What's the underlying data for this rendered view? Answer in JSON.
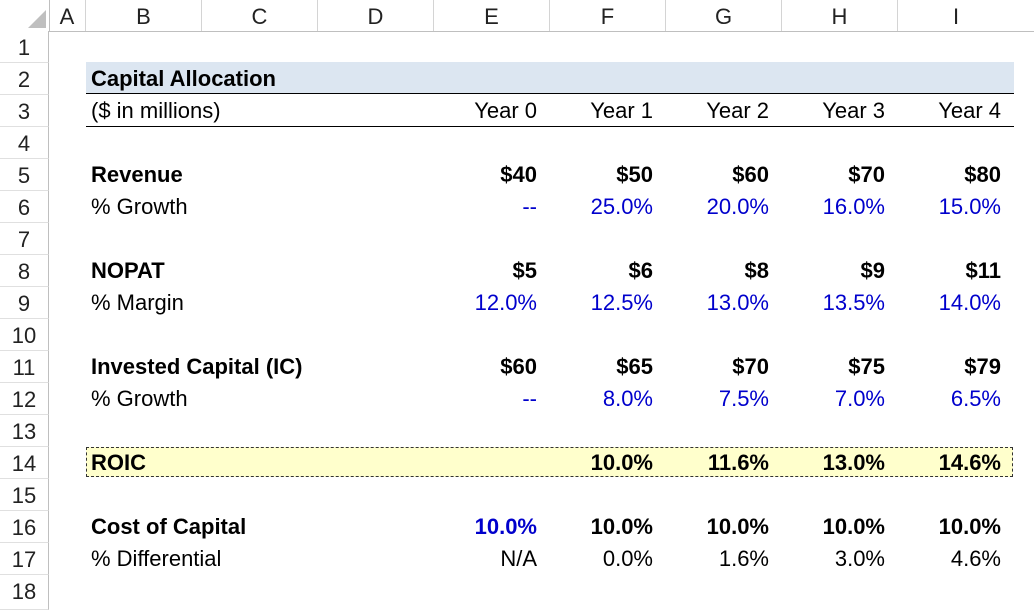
{
  "columns": [
    "A",
    "B",
    "C",
    "D",
    "E",
    "F",
    "G",
    "H",
    "I"
  ],
  "rows": [
    "1",
    "2",
    "3",
    "4",
    "5",
    "6",
    "7",
    "8",
    "9",
    "10",
    "11",
    "12",
    "13",
    "14",
    "15",
    "16",
    "17",
    "18"
  ],
  "title": "Capital Allocation",
  "units": "($ in millions)",
  "years": [
    "Year 0",
    "Year 1",
    "Year 2",
    "Year 3",
    "Year 4"
  ],
  "revenue": {
    "label": "Revenue",
    "values": [
      "$40",
      "$50",
      "$60",
      "$70",
      "$80"
    ]
  },
  "revenue_growth": {
    "label": "% Growth",
    "values": [
      "--",
      "25.0%",
      "20.0%",
      "16.0%",
      "15.0%"
    ]
  },
  "nopat": {
    "label": "NOPAT",
    "values": [
      "$5",
      "$6",
      "$8",
      "$9",
      "$11"
    ]
  },
  "nopat_margin": {
    "label": "% Margin",
    "values": [
      "12.0%",
      "12.5%",
      "13.0%",
      "13.5%",
      "14.0%"
    ]
  },
  "ic": {
    "label": "Invested Capital (IC)",
    "values": [
      "$60",
      "$65",
      "$70",
      "$75",
      "$79"
    ]
  },
  "ic_growth": {
    "label": "% Growth",
    "values": [
      "--",
      "8.0%",
      "7.5%",
      "7.0%",
      "6.5%"
    ]
  },
  "roic": {
    "label": "ROIC",
    "values": [
      "",
      "10.0%",
      "11.6%",
      "13.0%",
      "14.6%"
    ]
  },
  "cost_of_capital": {
    "label": "Cost of Capital",
    "values": [
      "10.0%",
      "10.0%",
      "10.0%",
      "10.0%",
      "10.0%"
    ]
  },
  "differential": {
    "label": "% Differential",
    "values": [
      "N/A",
      "0.0%",
      "1.6%",
      "3.0%",
      "4.6%"
    ]
  },
  "colors": {
    "input_blue": "#0000cc",
    "title_fill": "#dce6f1",
    "roic_fill": "#ffffcc"
  }
}
